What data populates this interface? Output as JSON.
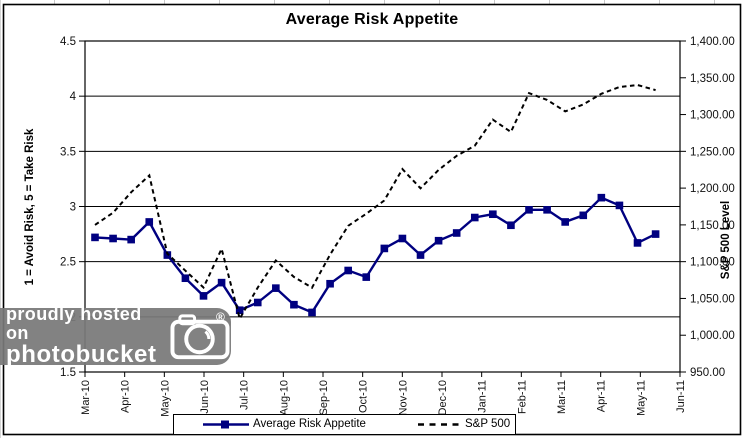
{
  "chart": {
    "title": "Average Risk Appetite",
    "left_axis_label": "1 = Avoid Risk, 5 = Take Risk",
    "right_axis_label": "S&P 500 Level",
    "legend": [
      {
        "label": "Average Risk Appetite",
        "color": "#000080",
        "line_style": "solid",
        "marker": "square"
      },
      {
        "label": "S&P 500",
        "color": "#000000",
        "line_style": "dashed",
        "marker": "none"
      }
    ]
  },
  "chart_data": {
    "type": "line",
    "title": "Average Risk Appetite",
    "x_tick_labels": [
      "Mar-10",
      "Apr-10",
      "May-10",
      "Jun-10",
      "Jul-10",
      "Aug-10",
      "Sep-10",
      "Oct-10",
      "Nov-10",
      "Dec-10",
      "Jan-11",
      "Feb-11",
      "Mar-11",
      "Apr-11",
      "May-11",
      "Jun-11"
    ],
    "left_axis": {
      "label": "1 = Avoid Risk, 5 = Take Risk",
      "min": 1.5,
      "max": 4.5,
      "tick_values": [
        4.5,
        4,
        3.5,
        3,
        2.5,
        2,
        1.5
      ],
      "tick_labels": [
        "4.5",
        "4",
        "3.5",
        "3",
        "2.5",
        "2",
        "1.5"
      ]
    },
    "right_axis": {
      "label": "S&P 500 Level",
      "min": 950,
      "max": 1400,
      "tick_values": [
        1400,
        1350,
        1300,
        1250,
        1200,
        1150,
        1100,
        1050,
        1000,
        950
      ],
      "tick_labels": [
        "1,400.00",
        "1,350.00",
        "1,300.00",
        "1,250.00",
        "1,200.00",
        "1,150.00",
        "1,100.00",
        "1,050.00",
        "1,000.00",
        "950.00"
      ]
    },
    "series": [
      {
        "name": "Average Risk Appetite",
        "axis": "left",
        "color": "#000080",
        "style": "solid",
        "marker": "square",
        "values": [
          2.72,
          2.71,
          2.7,
          2.86,
          2.56,
          2.35,
          2.19,
          2.31,
          2.06,
          2.13,
          2.26,
          2.11,
          2.04,
          2.3,
          2.42,
          2.36,
          2.62,
          2.71,
          2.56,
          2.69,
          2.76,
          2.9,
          2.93,
          2.83,
          2.97,
          2.97,
          2.86,
          2.92,
          3.08,
          3.01,
          2.67,
          2.75
        ]
      },
      {
        "name": "S&P 500",
        "axis": "right",
        "color": "#000000",
        "style": "dashed",
        "marker": "none",
        "values": [
          1150,
          1166.6,
          1194.4,
          1217.3,
          1110.9,
          1087.7,
          1064.9,
          1117.5,
          1022.6,
          1064.9,
          1101.6,
          1079.3,
          1064.6,
          1109.6,
          1148.7,
          1165.2,
          1183.1,
          1225.9,
          1199.7,
          1224.7,
          1243.9,
          1257.6,
          1293.2,
          1276.3,
          1329.2,
          1319.9,
          1304.3,
          1313.8,
          1328.2,
          1337.4,
          1340.2,
          1333.3
        ]
      }
    ],
    "layout": "32 biweekly observations spanning mid-Mar-2010 to mid-May-2011; horizontal gridlines at every 0.5 of the left axis; legend centered at bottom inside a border"
  },
  "watermark": {
    "line1": "proudly hosted on",
    "line2": "photobucket",
    "registered_symbol": "®"
  }
}
